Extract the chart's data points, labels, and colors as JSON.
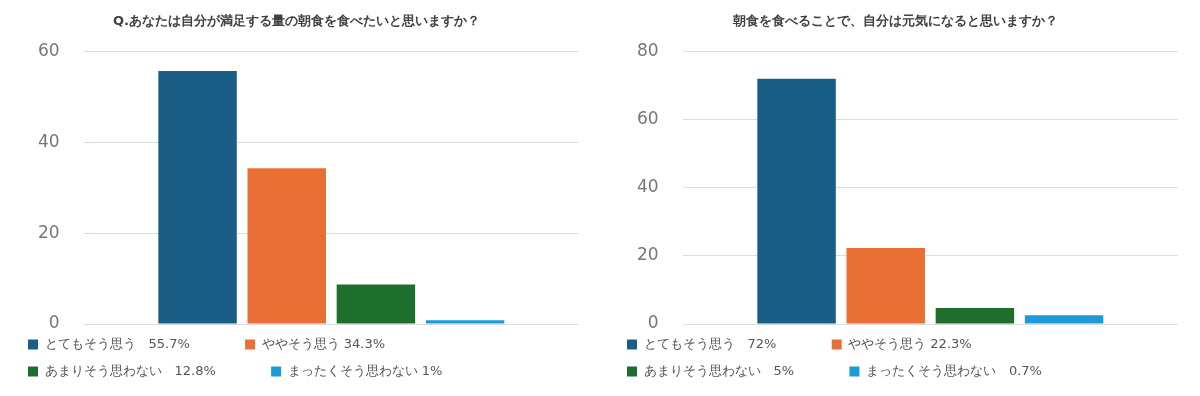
{
  "chart_data": [
    {
      "type": "bar",
      "title": "Q.あなたは自分が満足する量の朝食を食べたいと思いますか？",
      "categories": [
        null
      ],
      "ylim": [
        0,
        60
      ],
      "yticks": [
        0,
        20,
        40,
        60
      ],
      "grid": "y",
      "legend": "bottom",
      "series": [
        {
          "name": "とてもそう思う　55.7%",
          "color": "#1a5e85",
          "values": [
            55.7
          ]
        },
        {
          "name": "ややそう思う 34.3%",
          "color": "#e87035",
          "values": [
            34.3
          ]
        },
        {
          "name": "あまりそう思わない　12.8%",
          "color": "#1e6e2e",
          "values": [
            8.7
          ]
        },
        {
          "name": "まったくそう思わない 1%",
          "color": "#1b9bd7",
          "values": [
            0.8
          ]
        }
      ]
    },
    {
      "type": "bar",
      "title": "朝食を食べることで、自分は元気になると思いますか？",
      "categories": [
        null
      ],
      "ylim": [
        0,
        80
      ],
      "yticks": [
        0,
        20,
        40,
        60,
        80
      ],
      "grid": "y",
      "legend": "bottom",
      "series": [
        {
          "name": "とてもそう思う　72%",
          "color": "#1a5e85",
          "values": [
            72
          ]
        },
        {
          "name": "ややそう思う 22.3%",
          "color": "#e87035",
          "values": [
            22.3
          ]
        },
        {
          "name": "あまりそう思わない　5%",
          "color": "#1e6e2e",
          "values": [
            4.7
          ]
        },
        {
          "name": "まったくそう思わない　0.7%",
          "color": "#1b9bd7",
          "values": [
            2.6
          ]
        }
      ]
    }
  ]
}
